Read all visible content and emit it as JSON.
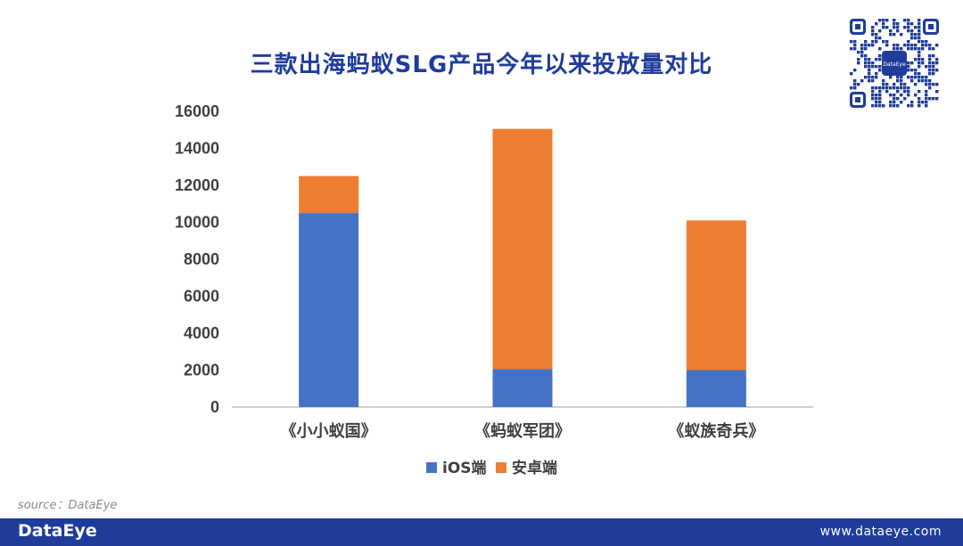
{
  "header": {
    "title": "三款出海蚂蚁SLG产品今年以来投放量对比"
  },
  "qr_code": {
    "logo_text": "DataEye"
  },
  "chart_data": {
    "type": "bar",
    "stacked": true,
    "title": "三款出海蚂蚁SLG产品今年以来投放量对比",
    "xlabel": "",
    "ylabel": "",
    "ylim": [
      0,
      16000
    ],
    "yticks": [
      "0",
      "2000",
      "4000",
      "6000",
      "8000",
      "10000",
      "12000",
      "14000",
      "16000"
    ],
    "categories": [
      "《小小蚁国》",
      "《蚂蚁军团》",
      "《蚁族奇兵》"
    ],
    "series": [
      {
        "name": "iOS端",
        "color": "#4472c4",
        "values": [
          10500,
          2050,
          2000
        ]
      },
      {
        "name": "安卓端",
        "color": "#ed7d31",
        "values": [
          2000,
          13000,
          8100
        ]
      }
    ],
    "grid": false,
    "legend_position": "bottom"
  },
  "source": {
    "text": "source：DataEye"
  },
  "footer": {
    "logo": "DataEye",
    "url": "www.dataeye.com"
  }
}
